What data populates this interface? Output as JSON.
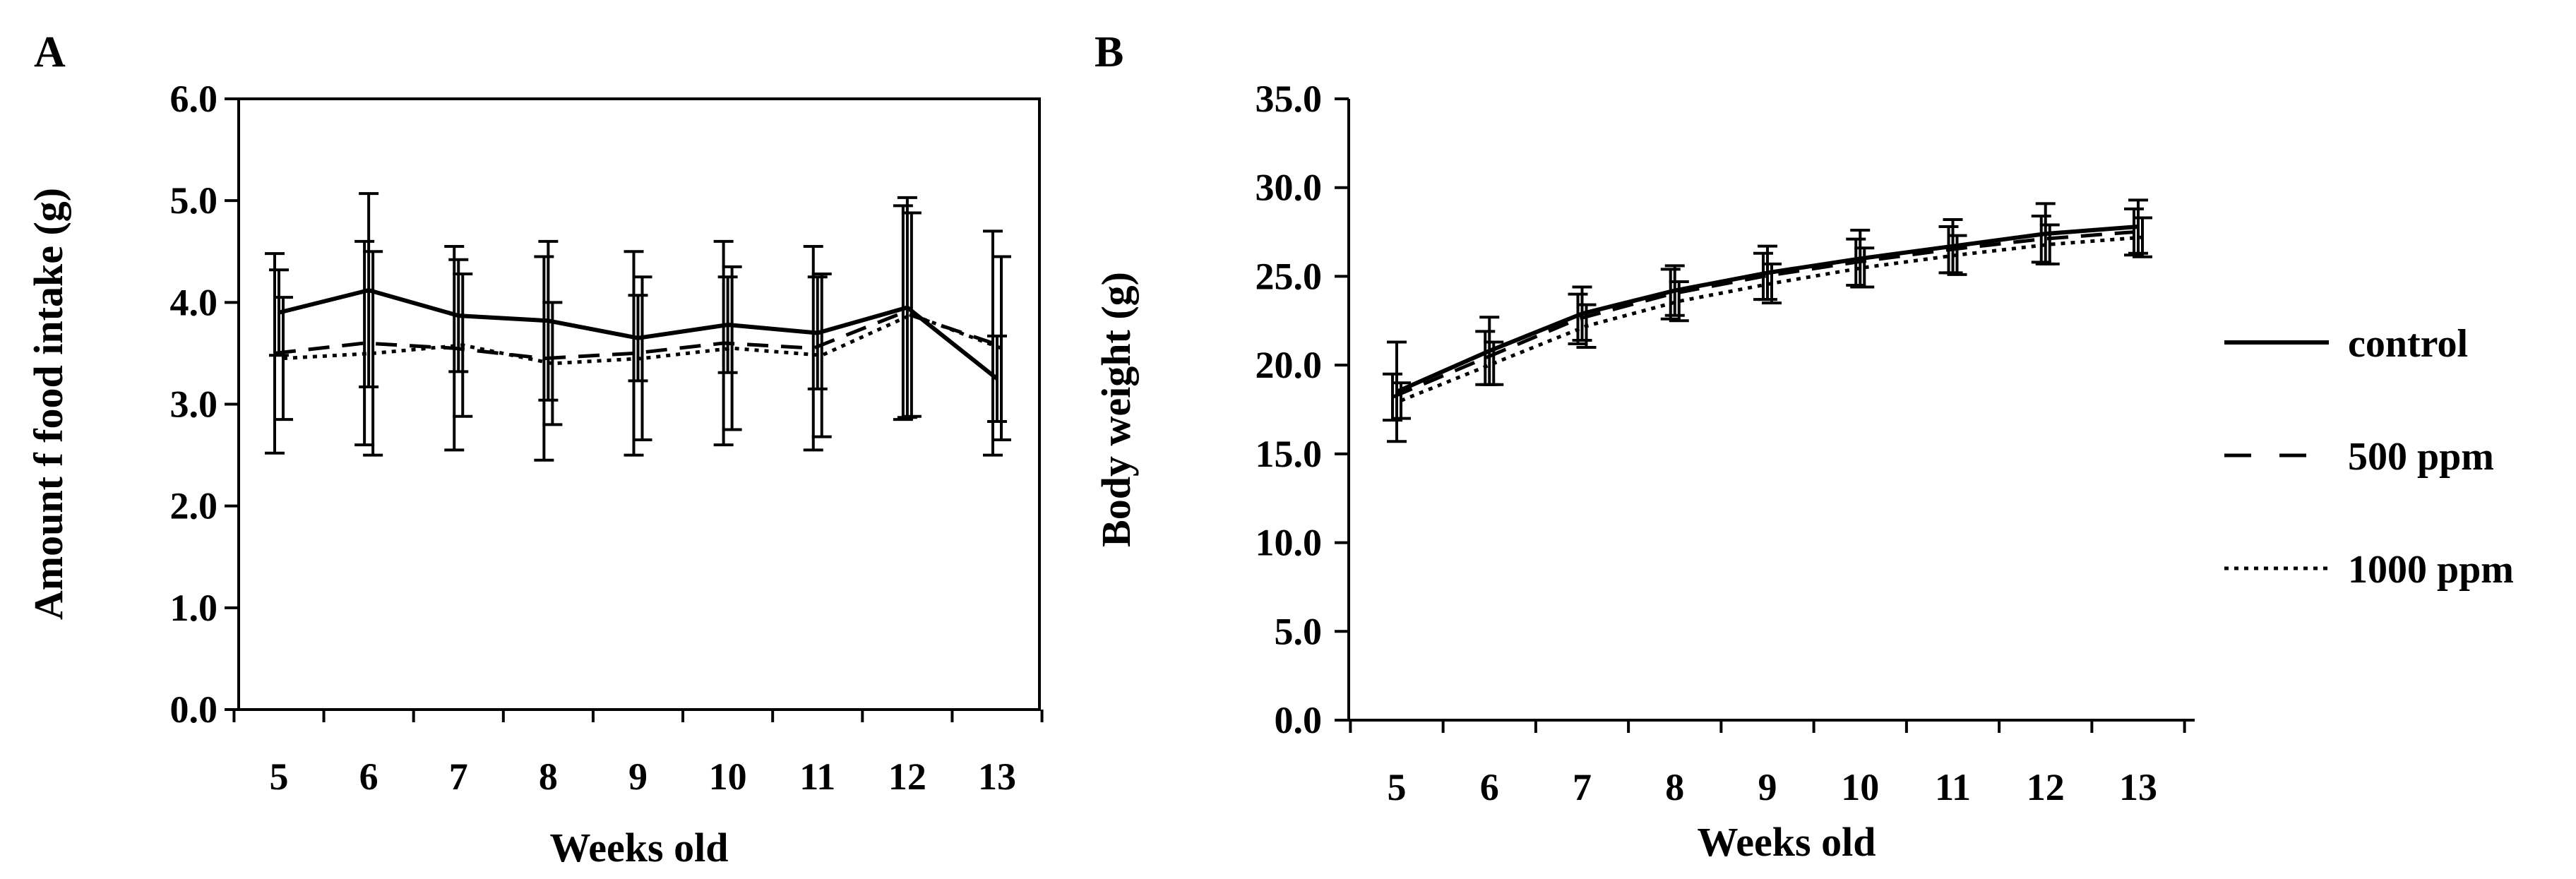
{
  "chart_data": [
    {
      "panel": "A",
      "type": "line",
      "ylabel": "Amount f food intake (g)",
      "xlabel": "Weeks old",
      "x": [
        5,
        6,
        7,
        8,
        9,
        10,
        11,
        12,
        13
      ],
      "x_tick_labels": [
        "5",
        "6",
        "7",
        "8",
        "9",
        "10",
        "11",
        "12",
        "13"
      ],
      "ylim": [
        0,
        6
      ],
      "y_ticks": [
        0,
        1,
        2,
        3,
        4,
        5,
        6
      ],
      "y_tick_labels": [
        "0.0",
        "1.0",
        "2.0",
        "3.0",
        "4.0",
        "5.0",
        "6.0"
      ],
      "grid": false,
      "series": [
        {
          "name": "control",
          "style": "solid",
          "values": [
            3.9,
            4.12,
            3.87,
            3.82,
            3.65,
            3.78,
            3.7,
            3.95,
            3.25
          ],
          "errors": [
            0.42,
            0.95,
            0.55,
            0.78,
            0.42,
            0.47,
            0.55,
            1.08,
            0.42
          ]
        },
        {
          "name": "500 ppm",
          "style": "dashed",
          "values": [
            3.5,
            3.6,
            3.55,
            3.45,
            3.5,
            3.6,
            3.55,
            3.9,
            3.6
          ],
          "errors": [
            0.98,
            1.0,
            1.0,
            1.0,
            1.0,
            1.0,
            1.0,
            1.05,
            1.1
          ]
        },
        {
          "name": "1000 ppm",
          "style": "dotted",
          "values": [
            3.45,
            3.5,
            3.58,
            3.4,
            3.45,
            3.55,
            3.48,
            3.88,
            3.55
          ],
          "errors": [
            0.6,
            1.0,
            0.7,
            0.6,
            0.8,
            0.8,
            0.8,
            1.0,
            0.9
          ]
        }
      ]
    },
    {
      "panel": "B",
      "type": "line",
      "ylabel": "Body weight (g)",
      "xlabel": "Weeks old",
      "x": [
        5,
        6,
        7,
        8,
        9,
        10,
        11,
        12,
        13
      ],
      "x_tick_labels": [
        "5",
        "6",
        "7",
        "8",
        "9",
        "10",
        "11",
        "12",
        "13"
      ],
      "ylim": [
        0,
        35
      ],
      "y_ticks": [
        0,
        5,
        10,
        15,
        20,
        25,
        30,
        35
      ],
      "y_tick_labels": [
        "0.0",
        "5.0",
        "10.0",
        "15.0",
        "20.0",
        "25.0",
        "30.0",
        "35.0"
      ],
      "grid": false,
      "series": [
        {
          "name": "control",
          "style": "solid",
          "values": [
            18.5,
            20.8,
            22.9,
            24.2,
            25.2,
            26.0,
            26.7,
            27.4,
            27.8
          ],
          "errors": [
            2.8,
            1.9,
            1.5,
            1.4,
            1.5,
            1.6,
            1.5,
            1.7,
            1.5
          ]
        },
        {
          "name": "500 ppm",
          "style": "dashed",
          "values": [
            18.2,
            20.4,
            22.6,
            24.0,
            25.0,
            25.8,
            26.5,
            27.1,
            27.5
          ],
          "errors": [
            1.3,
            1.5,
            1.4,
            1.4,
            1.3,
            1.3,
            1.3,
            1.3,
            1.3
          ]
        },
        {
          "name": "1000 ppm",
          "style": "dotted",
          "values": [
            18.0,
            20.1,
            22.2,
            23.6,
            24.6,
            25.5,
            26.2,
            26.8,
            27.2
          ],
          "errors": [
            1.0,
            1.2,
            1.2,
            1.1,
            1.1,
            1.1,
            1.1,
            1.1,
            1.1
          ]
        }
      ]
    }
  ],
  "legend": {
    "position": "right",
    "entries": [
      {
        "label": "control",
        "style": "solid"
      },
      {
        "label": "500 ppm",
        "style": "dashed"
      },
      {
        "label": "1000 ppm",
        "style": "dotted"
      }
    ]
  }
}
